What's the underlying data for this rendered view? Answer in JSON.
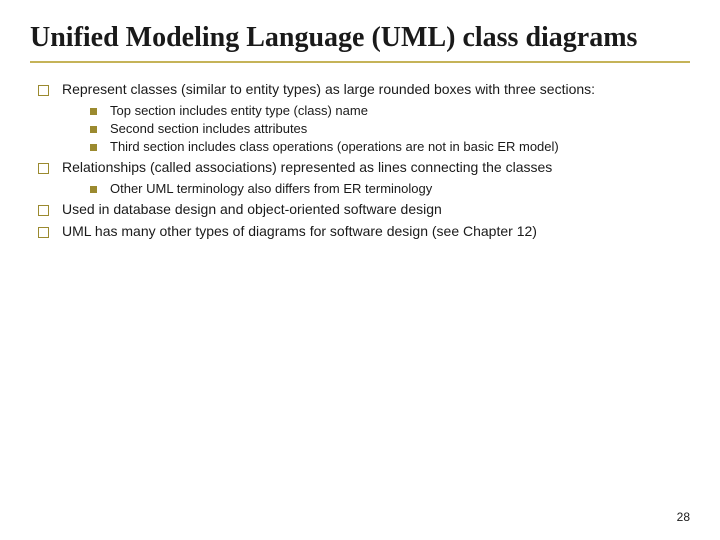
{
  "title": "Unified Modeling Language (UML) class diagrams",
  "bullets": {
    "b1": {
      "text": "Represent classes (similar to entity types) as large rounded boxes with three sections:",
      "sub": {
        "s1": "Top section includes entity type (class) name",
        "s2": "Second section includes attributes",
        "s3": "Third section includes class operations (operations are not in basic ER model)"
      }
    },
    "b2": {
      "text": "Relationships (called associations) represented as lines connecting the classes",
      "sub": {
        "s1": "Other UML terminology also differs from ER terminology"
      }
    },
    "b3": {
      "text": "Used in database design and object-oriented software design"
    },
    "b4": {
      "text": "UML has many other types of diagrams for software design (see Chapter 12)"
    }
  },
  "pageNumber": "28",
  "colors": {
    "underline": "#c5b358",
    "bulletBorder": "#9b8a2f",
    "text": "#1a1a1a"
  },
  "fonts": {
    "titleFamily": "Georgia",
    "bodyFamily": "Verdana",
    "titleSize": 28,
    "bodySize": 14,
    "subSize": 13
  }
}
